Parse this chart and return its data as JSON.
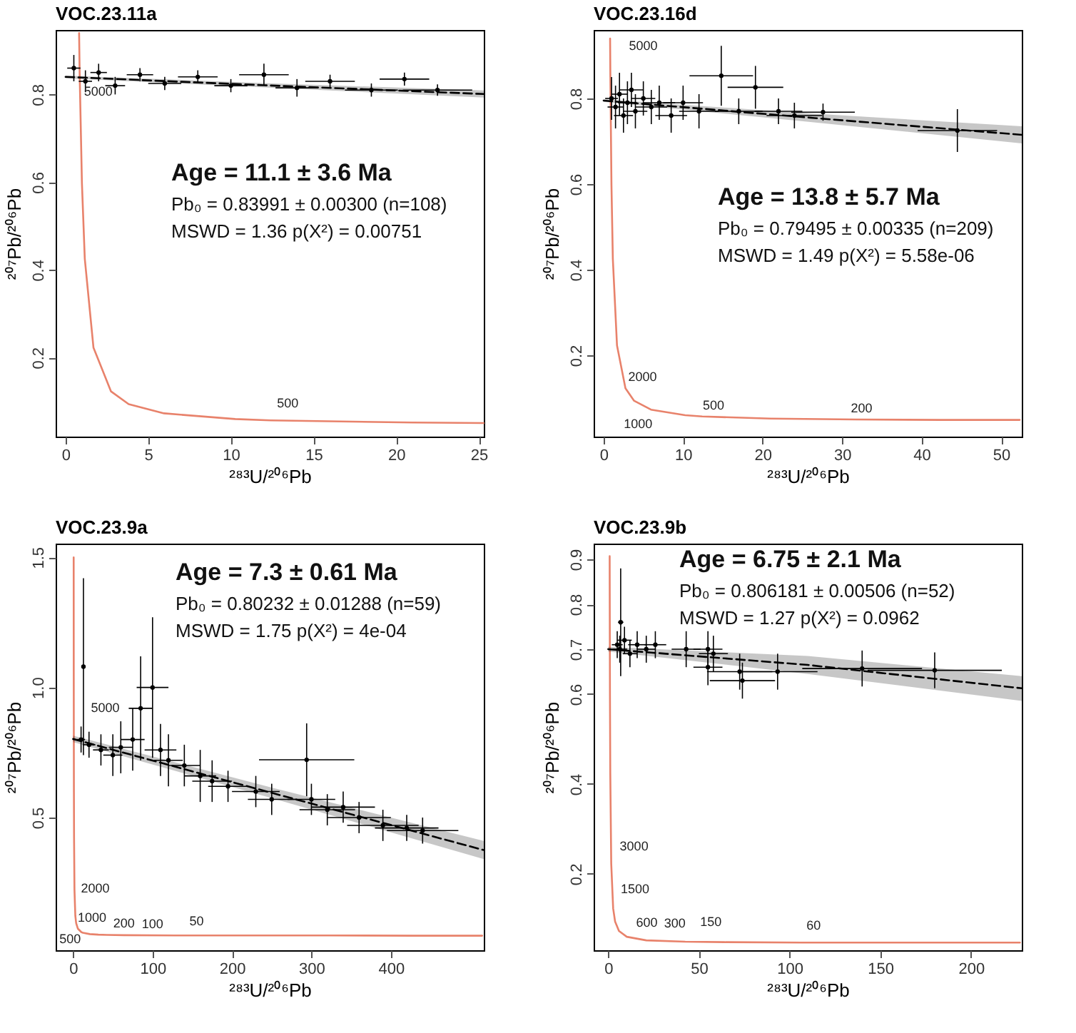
{
  "chart_data": [
    {
      "type": "scatter",
      "title": "VOC.23.11a",
      "xlabel": "²⁸³U/²⁰⁶Pb",
      "ylabel": "²⁰⁷Pb/²⁰⁶Pb",
      "xlim": [
        -0.6,
        25.3
      ],
      "ylim": [
        0.02,
        0.947
      ],
      "xticks": [
        0,
        5,
        10,
        15,
        20,
        25
      ],
      "yticks": [
        0.2,
        0.4,
        0.6,
        0.8
      ],
      "annotations": [
        "Age = 11.1 ± 3.6 Ma",
        "Pb₀ = 0.83991 ± 0.00300 (n=108)",
        "MSWD = 1.36 p(X²) = 0.00751",
        {
          "text": "5000",
          "x": 0.853,
          "y": 0.846
        },
        {
          "text": "500",
          "x": 12.4,
          "y": 0.057
        }
      ],
      "series": [
        {
          "type": "line",
          "color": "#e8826b",
          "x": [
            0.818,
            0.853,
            0.99,
            1.163,
            1.687,
            2.749,
            3.816,
            5.959,
            10.26,
            12.4,
            20.99,
            25.29
          ],
          "values": [
            0.94,
            0.846,
            0.597,
            0.425,
            0.223,
            0.123,
            0.094,
            0.073,
            0.06,
            0.057,
            0.052,
            0.051
          ]
        },
        {
          "type": "line",
          "color": "#000000",
          "line_style": "dashed",
          "x": [
            0,
            12,
            25.3
          ],
          "values": [
            0.84,
            0.821,
            0.801
          ],
          "lower": [
            0.837,
            0.816,
            0.793
          ],
          "upper": [
            0.843,
            0.826,
            0.809
          ]
        },
        {
          "color": "#000000",
          "marker": "circle",
          "x": [
            0.5,
            1.2,
            2.0,
            3.0,
            4.5,
            6.0,
            8.0,
            10.0,
            12.0,
            14.0,
            16.0,
            18.5,
            20.5,
            22.5
          ],
          "values": [
            0.86,
            0.83,
            0.85,
            0.82,
            0.845,
            0.825,
            0.84,
            0.82,
            0.845,
            0.815,
            0.83,
            0.81,
            0.835,
            0.81
          ],
          "xerrors": [
            0.4,
            0.4,
            0.5,
            0.6,
            0.8,
            1.0,
            1.2,
            1.0,
            1.5,
            1.3,
            1.5,
            1.6,
            1.5,
            2.1
          ],
          "errors": [
            0.03,
            0.025,
            0.02,
            0.02,
            0.015,
            0.015,
            0.015,
            0.015,
            0.025,
            0.02,
            0.015,
            0.015,
            0.015,
            0.013
          ]
        }
      ]
    },
    {
      "type": "scatter",
      "title": "VOC.23.16d",
      "xlabel": "²⁸³U/²⁰⁶Pb",
      "ylabel": "²⁰⁷Pb/²⁰⁶Pb",
      "xlim": [
        -1.25,
        52.6
      ],
      "ylim": [
        0.01,
        0.96
      ],
      "xticks": [
        0,
        10,
        20,
        30,
        40,
        50
      ],
      "yticks": [
        0.2,
        0.4,
        0.6,
        0.8
      ],
      "annotations": [
        "Age = 13.8 ± 5.7 Ma",
        "Pb₀ = 0.79495 ± 0.00335 (n=209)",
        "MSWD = 1.49 p(X²) = 5.58e-06",
        {
          "text": "5000",
          "x": 0.853,
          "y": 0.846
        },
        {
          "text": "2000",
          "x": 2.749,
          "y": 0.123
        },
        {
          "text": "1000",
          "x": 5.959,
          "y": 0.073
        },
        {
          "text": "500",
          "x": 12.4,
          "y": 0.057
        },
        {
          "text": "200",
          "x": 31.73,
          "y": 0.05
        }
      ],
      "series": [
        {
          "type": "line",
          "color": "#e8826b",
          "x": [
            0.818,
            0.853,
            0.99,
            1.163,
            1.687,
            2.749,
            3.816,
            5.959,
            10.26,
            12.4,
            20.99,
            31.73,
            42.48,
            52.34
          ],
          "values": [
            0.94,
            0.846,
            0.597,
            0.425,
            0.223,
            0.123,
            0.094,
            0.073,
            0.06,
            0.057,
            0.052,
            0.05,
            0.049,
            0.049
          ]
        },
        {
          "type": "line",
          "color": "#000000",
          "line_style": "dashed",
          "x": [
            0,
            26,
            52.6
          ],
          "values": [
            0.795,
            0.755,
            0.715
          ],
          "lower": [
            0.792,
            0.745,
            0.695
          ],
          "upper": [
            0.798,
            0.765,
            0.735
          ]
        },
        {
          "color": "#000000",
          "marker": "circle",
          "x": [
            1.0,
            1.5,
            2.0,
            2.5,
            3.0,
            3.5,
            4.0,
            5.0,
            6.0,
            7.0,
            8.5,
            10,
            12,
            14.8,
            17,
            19.1,
            22,
            24,
            27.6,
            44.5
          ],
          "values": [
            0.8,
            0.78,
            0.81,
            0.76,
            0.79,
            0.82,
            0.77,
            0.8,
            0.78,
            0.79,
            0.76,
            0.79,
            0.77,
            0.853,
            0.77,
            0.826,
            0.77,
            0.76,
            0.768,
            0.725
          ],
          "xerrors": [
            0.8,
            1,
            1,
            1.2,
            1.2,
            1.5,
            1.5,
            1.5,
            2,
            2,
            2,
            2.5,
            2.5,
            4,
            3,
            3.5,
            3,
            3.5,
            4,
            5
          ],
          "errors": [
            0.05,
            0.05,
            0.05,
            0.04,
            0.05,
            0.04,
            0.04,
            0.04,
            0.04,
            0.04,
            0.04,
            0.04,
            0.04,
            0.07,
            0.03,
            0.05,
            0.03,
            0.03,
            0.02,
            0.05
          ]
        }
      ]
    },
    {
      "type": "scatter",
      "title": "VOC.23.9a",
      "xlabel": "²⁸³U/²⁰⁶Pb",
      "ylabel": "²⁰⁷Pb/²⁰⁶Pb",
      "xlim": [
        -22,
        517
      ],
      "ylim": [
        -0.01,
        1.553
      ],
      "xticks": [
        0,
        100,
        200,
        300,
        400
      ],
      "yticks": [
        0.5,
        {
          "value": 1,
          "label": "1.0"
        },
        1.5
      ],
      "annotations": [
        "Age = 7.3 ± 0.61 Ma",
        "Pb₀ = 0.80232 ± 0.01288 (n=59)",
        "MSWD = 1.75 p(X²) = 4e-04",
        {
          "text": "5000",
          "x": 0.853,
          "y": 0.846
        },
        {
          "text": "2000",
          "x": 2.749,
          "y": 0.123
        },
        {
          "text": "1000",
          "x": 5.959,
          "y": 0.073
        },
        {
          "text": "200",
          "x": 31.73,
          "y": 0.05
        },
        {
          "text": "500",
          "x": 12.4,
          "y": 0.057
        },
        {
          "text": "100",
          "x": 63.97,
          "y": 0.048
        },
        {
          "text": "50",
          "x": 128.4,
          "y": 0.047
        }
      ],
      "series": [
        {
          "type": "line",
          "color": "#e8826b",
          "x": [
            0.685,
            0.742,
            0.784,
            0.853,
            0.99,
            1.163,
            1.687,
            2.749,
            3.816,
            5.959,
            10.26,
            12.4,
            20.99,
            31.73,
            42.48,
            63.97,
            128.4,
            321.8,
            429.4,
            515
          ],
          "values": [
            1.5,
            1.208,
            1.046,
            0.846,
            0.597,
            0.425,
            0.223,
            0.123,
            0.094,
            0.073,
            0.06,
            0.057,
            0.052,
            0.05,
            0.049,
            0.048,
            0.047,
            0.047,
            0.046,
            0.046
          ]
        },
        {
          "type": "line",
          "color": "#000000",
          "line_style": "dashed",
          "x": [
            0,
            250,
            517
          ],
          "values": [
            0.802,
            0.595,
            0.375
          ],
          "lower": [
            0.79,
            0.575,
            0.34
          ],
          "upper": [
            0.815,
            0.615,
            0.41
          ]
        },
        {
          "color": "#000000",
          "marker": "circle",
          "x": [
            10,
            13,
            20,
            35,
            50,
            60,
            75,
            85,
            100,
            110,
            120,
            140,
            160,
            175,
            195,
            230,
            250,
            294,
            300,
            320,
            340,
            360,
            390,
            420,
            440
          ],
          "values": [
            0.8,
            1.08,
            0.78,
            0.76,
            0.74,
            0.77,
            0.8,
            0.92,
            1.0,
            0.76,
            0.72,
            0.7,
            0.66,
            0.64,
            0.62,
            0.6,
            0.57,
            0.722,
            0.57,
            0.53,
            0.54,
            0.5,
            0.47,
            0.46,
            0.45
          ],
          "xerrors": [
            5,
            2,
            8,
            10,
            12,
            15,
            15,
            15,
            20,
            20,
            18,
            20,
            20,
            25,
            25,
            30,
            30,
            60,
            30,
            35,
            40,
            40,
            45,
            40,
            45
          ],
          "errors": [
            0.05,
            0.34,
            0.05,
            0.06,
            0.08,
            0.1,
            0.12,
            0.2,
            0.27,
            0.1,
            0.1,
            0.08,
            0.1,
            0.08,
            0.06,
            0.06,
            0.06,
            0.14,
            0.06,
            0.06,
            0.06,
            0.06,
            0.06,
            0.05,
            0.05
          ]
        }
      ]
    },
    {
      "type": "scatter",
      "title": "VOC.23.9b",
      "xlabel": "²⁸³U/²⁰⁶Pb",
      "ylabel": "²⁰⁷Pb/²⁰⁶Pb",
      "xlim": [
        -8,
        228
      ],
      "ylim": [
        0.03,
        0.935
      ],
      "xticks": [
        0,
        50,
        100,
        150,
        200
      ],
      "yticks": [
        0.2,
        0.4,
        0.6,
        0.7,
        0.8,
        0.9
      ],
      "annotations": [
        "Age = 6.75 ± 2.1 Ma",
        "Pb₀ = 0.806181 ± 0.00506 (n=52)",
        "MSWD = 1.27 p(X²) = 0.0962",
        {
          "text": "3000",
          "x": 1.687,
          "y": 0.223
        },
        {
          "text": "1500",
          "x": 3.816,
          "y": 0.094
        },
        {
          "text": "600",
          "x": 10.26,
          "y": 0.06
        },
        {
          "text": "300",
          "x": 20.99,
          "y": 0.052
        },
        {
          "text": "150",
          "x": 42.48,
          "y": 0.049
        },
        {
          "text": "60",
          "x": 106.95,
          "y": 0.047
        }
      ],
      "series": [
        {
          "type": "line",
          "color": "#e8826b",
          "x": [
            0.829,
            0.853,
            0.99,
            1.163,
            1.687,
            2.749,
            3.816,
            5.959,
            10.26,
            20.99,
            42.48,
            63.97,
            106.95,
            227
          ],
          "values": [
            0.907,
            0.846,
            0.597,
            0.425,
            0.223,
            0.123,
            0.094,
            0.073,
            0.06,
            0.052,
            0.049,
            0.048,
            0.047,
            0.047
          ]
        },
        {
          "type": "line",
          "color": "#000000",
          "line_style": "dashed",
          "x": [
            0,
            110,
            228
          ],
          "values": [
            0.7,
            0.665,
            0.613
          ],
          "lower": [
            0.695,
            0.645,
            0.585
          ],
          "upper": [
            0.705,
            0.685,
            0.64
          ]
        },
        {
          "color": "#000000",
          "marker": "circle",
          "x": [
            5,
            6.4,
            6.9,
            9,
            12,
            16,
            21,
            26,
            43,
            55,
            55,
            58,
            72.5,
            74,
            93.4,
            140,
            180
          ],
          "values": [
            0.71,
            0.7,
            0.76,
            0.72,
            0.69,
            0.71,
            0.7,
            0.71,
            0.7,
            0.7,
            0.66,
            0.69,
            0.65,
            0.63,
            0.65,
            0.657,
            0.653
          ],
          "xerrors": [
            3,
            4,
            1.5,
            4,
            4,
            5,
            5,
            6,
            8,
            8,
            8,
            8,
            18,
            18,
            22,
            33,
            37
          ],
          "errors": [
            0.03,
            0.03,
            0.12,
            0.03,
            0.03,
            0.03,
            0.03,
            0.03,
            0.04,
            0.04,
            0.04,
            0.04,
            0.04,
            0.04,
            0.04,
            0.04,
            0.04
          ]
        }
      ]
    }
  ]
}
